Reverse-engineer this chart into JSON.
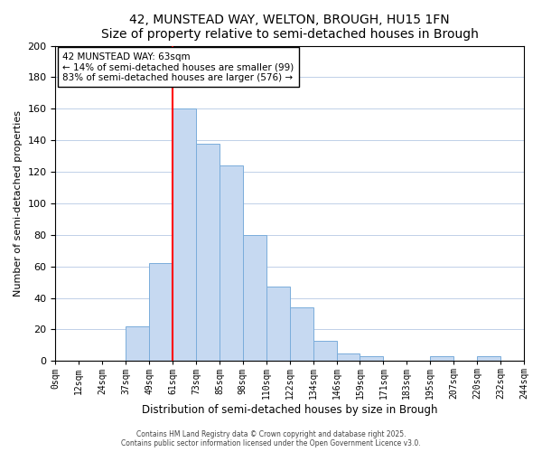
{
  "title": "42, MUNSTEAD WAY, WELTON, BROUGH, HU15 1FN",
  "subtitle": "Size of property relative to semi-detached houses in Brough",
  "xlabel": "Distribution of semi-detached houses by size in Brough",
  "ylabel": "Number of semi-detached properties",
  "bin_labels": [
    "0sqm",
    "12sqm",
    "24sqm",
    "37sqm",
    "49sqm",
    "61sqm",
    "73sqm",
    "85sqm",
    "98sqm",
    "110sqm",
    "122sqm",
    "134sqm",
    "146sqm",
    "159sqm",
    "171sqm",
    "183sqm",
    "195sqm",
    "207sqm",
    "220sqm",
    "232sqm",
    "244sqm"
  ],
  "bar_heights": [
    0,
    0,
    0,
    22,
    62,
    160,
    138,
    124,
    80,
    47,
    34,
    13,
    5,
    3,
    0,
    0,
    3,
    0,
    3,
    0
  ],
  "bar_color": "#c6d9f1",
  "bar_edge_color": "#7aaddb",
  "marker_line_color": "red",
  "annotation_title": "42 MUNSTEAD WAY: 63sqm",
  "annotation_line1": "← 14% of semi-detached houses are smaller (99)",
  "annotation_line2": "83% of semi-detached houses are larger (576) →",
  "annotation_box_color": "white",
  "annotation_box_edge": "black",
  "ylim": [
    0,
    200
  ],
  "yticks": [
    0,
    20,
    40,
    60,
    80,
    100,
    120,
    140,
    160,
    180,
    200
  ],
  "footer1": "Contains HM Land Registry data © Crown copyright and database right 2025.",
  "footer2": "Contains public sector information licensed under the Open Government Licence v3.0."
}
